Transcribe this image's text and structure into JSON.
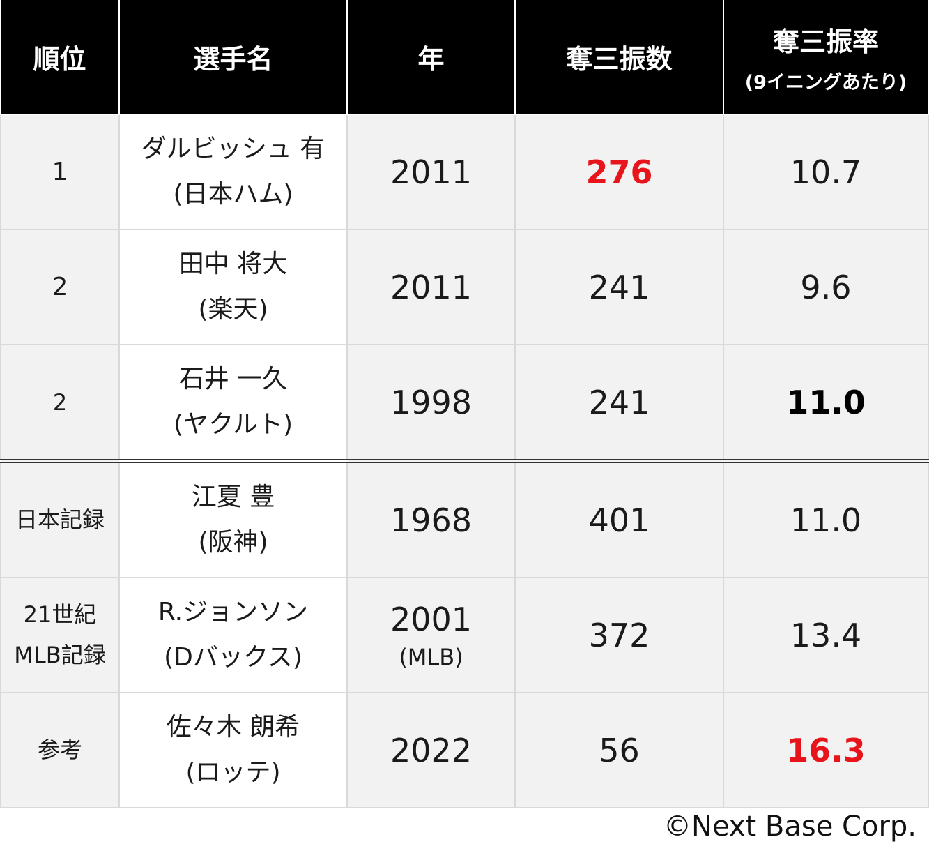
{
  "table": {
    "headers": {
      "rank": "順位",
      "player": "選手名",
      "year": "年",
      "strikeouts": "奪三振数",
      "k_rate": "奪三振率",
      "k_rate_note": "(9イニングあたり)"
    },
    "rows": [
      {
        "rank": "1",
        "name": "ダルビッシュ 有",
        "team": "(日本ハム)",
        "year": "2011",
        "year_note": "",
        "strikeouts": "276",
        "k_rate": "10.7"
      },
      {
        "rank": "2",
        "name": "田中 将大",
        "team": "(楽天)",
        "year": "2011",
        "year_note": "",
        "strikeouts": "241",
        "k_rate": "9.6"
      },
      {
        "rank": "2",
        "name": "石井 一久",
        "team": "(ヤクルト)",
        "year": "1998",
        "year_note": "",
        "strikeouts": "241",
        "k_rate": "11.0"
      },
      {
        "rank": "日本記録",
        "name": "江夏 豊",
        "team": "(阪神)",
        "year": "1968",
        "year_note": "",
        "strikeouts": "401",
        "k_rate": "11.0"
      },
      {
        "rank": "21世紀\nMLB記録",
        "rank_line1": "21世紀",
        "rank_line2": "MLB記録",
        "name": "R.ジョンソン",
        "team": "(Dバックス)",
        "year": "2001",
        "year_note": "(MLB)",
        "strikeouts": "372",
        "k_rate": "13.4"
      },
      {
        "rank": "参考",
        "name": "佐々木 朗希",
        "team": "(ロッテ)",
        "year": "2022",
        "year_note": "",
        "strikeouts": "56",
        "k_rate": "16.3"
      }
    ]
  },
  "colors": {
    "header_bg": "#000000",
    "header_text": "#ffffff",
    "cell_gray": "#f2f2f2",
    "highlight_red": "#e8141b"
  },
  "copyright": "©Next Base Corp."
}
